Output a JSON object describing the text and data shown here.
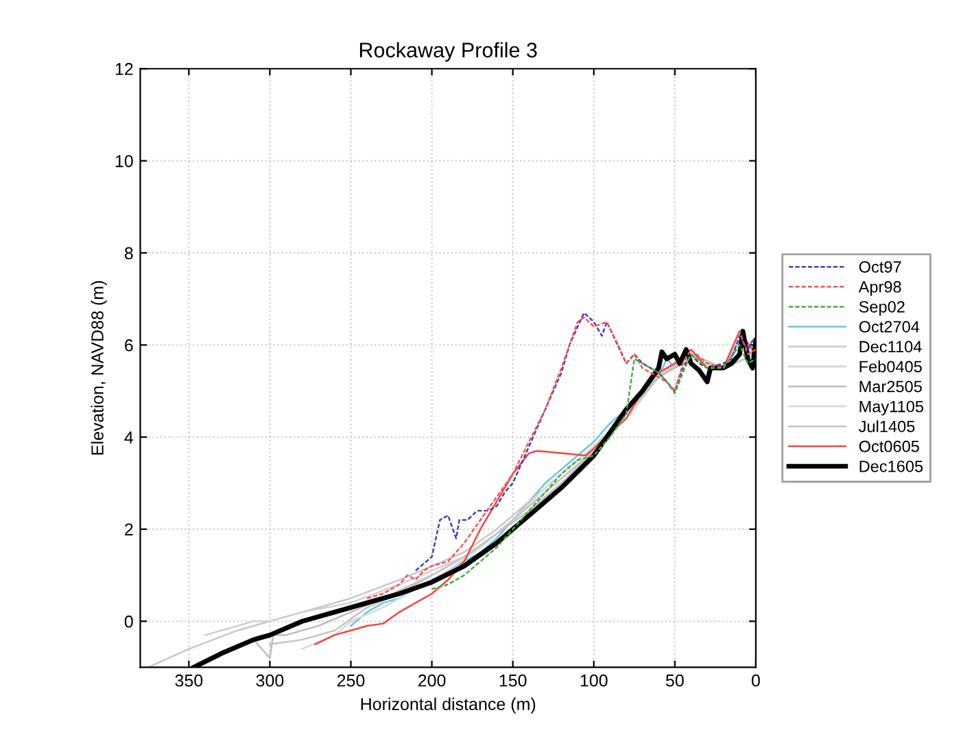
{
  "chart_data": {
    "type": "line",
    "title": "Rockaway Profile 3",
    "xlabel": "Horizontal distance (m)",
    "ylabel": "Elevation, NAVD88 (m)",
    "xlim": [
      380,
      0
    ],
    "xticks": [
      350,
      300,
      250,
      200,
      150,
      100,
      50,
      0
    ],
    "ylim": [
      -1,
      12
    ],
    "yticks": [
      0,
      2,
      4,
      6,
      8,
      10,
      12
    ],
    "grid": true,
    "legend": "right",
    "marker": "none",
    "series": [
      {
        "name": "Oct97",
        "color": "#4040c0",
        "line_style": "dashed",
        "x": [
          210,
          200,
          195,
          190,
          187,
          185,
          183,
          178,
          172,
          165,
          160,
          155,
          150,
          140,
          130,
          120,
          115,
          110,
          106,
          100,
          95,
          92,
          88,
          80,
          75,
          70,
          60,
          55,
          50,
          45,
          40,
          35,
          30,
          20,
          15,
          10,
          5,
          2,
          0
        ],
        "values": [
          1.1,
          1.4,
          2.2,
          2.3,
          2.0,
          1.8,
          2.2,
          2.2,
          2.4,
          2.4,
          2.5,
          2.8,
          3.0,
          3.8,
          4.6,
          5.4,
          6.0,
          6.4,
          6.7,
          6.5,
          6.2,
          6.5,
          6.2,
          5.6,
          5.8,
          5.6,
          5.4,
          5.2,
          5.0,
          5.5,
          5.8,
          5.6,
          5.5,
          5.6,
          5.7,
          6.2,
          5.9,
          6.1,
          6.1
        ]
      },
      {
        "name": "Apr98",
        "color": "#ff5050",
        "line_style": "dashed",
        "x": [
          240,
          230,
          220,
          215,
          210,
          205,
          200,
          190,
          185,
          180,
          170,
          160,
          150,
          140,
          130,
          120,
          110,
          106,
          100,
          92,
          85,
          80,
          75,
          70,
          60,
          55,
          50,
          45,
          40,
          30,
          20,
          10,
          5,
          0
        ],
        "values": [
          0.5,
          0.6,
          0.8,
          1.0,
          0.9,
          1.1,
          1.2,
          1.3,
          1.5,
          1.7,
          2.2,
          2.7,
          3.2,
          3.9,
          4.6,
          5.5,
          6.5,
          6.6,
          6.4,
          6.5,
          6.0,
          5.6,
          5.8,
          5.5,
          5.3,
          5.2,
          5.0,
          5.6,
          5.9,
          5.6,
          5.5,
          6.3,
          5.8,
          5.9
        ]
      },
      {
        "name": "Sep02",
        "color": "#40b030",
        "line_style": "dashed",
        "x": [
          200,
          190,
          180,
          170,
          160,
          150,
          140,
          130,
          120,
          110,
          100,
          90,
          80,
          75,
          70,
          60,
          55,
          50,
          45,
          40,
          30,
          20,
          10,
          5,
          0
        ],
        "values": [
          0.7,
          0.8,
          1.0,
          1.3,
          1.6,
          2.0,
          2.4,
          2.8,
          3.2,
          3.5,
          3.6,
          4.0,
          4.5,
          5.7,
          5.6,
          5.4,
          5.2,
          4.95,
          5.4,
          5.8,
          5.5,
          5.5,
          6.0,
          5.6,
          5.7
        ]
      },
      {
        "name": "Oct2704",
        "color": "#60c8e0",
        "line_style": "solid",
        "x": [
          250,
          240,
          230,
          220,
          210,
          200,
          190,
          180,
          170,
          160,
          150,
          140,
          130,
          120,
          110,
          100,
          90,
          80,
          70,
          60,
          55,
          50,
          40,
          30,
          20,
          10,
          0
        ],
        "values": [
          -0.1,
          0.2,
          0.4,
          0.5,
          0.7,
          0.9,
          1.1,
          1.3,
          1.5,
          1.8,
          2.2,
          2.6,
          3.0,
          3.3,
          3.6,
          3.9,
          4.3,
          4.6,
          5.0,
          5.3,
          5.7,
          5.5,
          5.8,
          5.5,
          5.5,
          6.1,
          5.7
        ]
      },
      {
        "name": "Dec1104",
        "color": "#c8c8c8",
        "line_style": "solid",
        "x": [
          375,
          350,
          320,
          300,
          280,
          250,
          220,
          200,
          180,
          160,
          140,
          120,
          100,
          80,
          60,
          50,
          40,
          20,
          10,
          0
        ],
        "values": [
          -1.0,
          -0.6,
          -0.2,
          0.0,
          0.2,
          0.5,
          0.9,
          1.2,
          1.5,
          2.0,
          2.6,
          3.2,
          3.8,
          4.5,
          5.3,
          5.6,
          5.8,
          5.5,
          6.1,
          5.8
        ]
      },
      {
        "name": "Feb0405",
        "color": "#d0d0d0",
        "line_style": "solid",
        "x": [
          340,
          310,
          300,
          280,
          250,
          220,
          200,
          180,
          160,
          140,
          120,
          100,
          80,
          60,
          40,
          20,
          0
        ],
        "values": [
          -0.3,
          0.0,
          0.0,
          0.2,
          0.4,
          0.8,
          1.1,
          1.4,
          1.9,
          2.5,
          3.1,
          3.7,
          4.4,
          5.3,
          5.7,
          5.5,
          5.8
        ]
      },
      {
        "name": "Mar2505",
        "color": "#bdbdbd",
        "line_style": "solid",
        "x": [
          310,
          300,
          298,
          290,
          270,
          250,
          230,
          200,
          180,
          160,
          140,
          120,
          100,
          80,
          60,
          40,
          20,
          0
        ],
        "values": [
          -0.4,
          -0.8,
          -0.3,
          -0.3,
          -0.1,
          0.2,
          0.5,
          1.0,
          1.4,
          1.9,
          2.4,
          3.0,
          3.7,
          4.5,
          5.3,
          5.7,
          5.5,
          5.8
        ]
      },
      {
        "name": "May1105",
        "color": "#d8d8d8",
        "line_style": "solid",
        "x": [
          280,
          260,
          250,
          230,
          210,
          190,
          170,
          150,
          130,
          110,
          90,
          70,
          55,
          40,
          20,
          0
        ],
        "values": [
          -0.6,
          -0.3,
          0.0,
          0.3,
          0.7,
          1.1,
          1.6,
          2.2,
          2.9,
          3.5,
          4.1,
          4.9,
          5.5,
          5.7,
          5.5,
          5.8
        ]
      },
      {
        "name": "Jul1405",
        "color": "#c4c4c4",
        "line_style": "solid",
        "x": [
          300,
          280,
          260,
          240,
          220,
          200,
          180,
          160,
          140,
          120,
          100,
          80,
          60,
          40,
          20,
          0
        ],
        "values": [
          -0.5,
          -0.4,
          -0.2,
          0.3,
          0.6,
          1.0,
          1.4,
          1.9,
          2.5,
          3.1,
          3.7,
          4.5,
          5.3,
          5.8,
          5.5,
          5.8
        ]
      },
      {
        "name": "Oct0605",
        "color": "#ff4040",
        "line_style": "solid",
        "x": [
          272,
          260,
          250,
          240,
          230,
          220,
          210,
          200,
          190,
          180,
          170,
          160,
          150,
          140,
          135,
          120,
          105,
          100,
          90,
          80,
          70,
          60,
          50,
          40,
          30,
          20,
          10,
          0
        ],
        "values": [
          -0.5,
          -0.3,
          -0.2,
          -0.1,
          -0.05,
          0.2,
          0.4,
          0.6,
          0.9,
          1.3,
          2.0,
          2.6,
          3.2,
          3.65,
          3.7,
          3.65,
          3.6,
          3.75,
          4.1,
          4.4,
          5.0,
          5.4,
          5.6,
          5.9,
          5.5,
          5.5,
          6.3,
          5.8
        ]
      },
      {
        "name": "Dec1605",
        "color": "#000000",
        "line_style": "solid",
        "x": [
          347,
          330,
          310,
          300,
          280,
          260,
          250,
          240,
          220,
          200,
          180,
          160,
          140,
          120,
          100,
          90,
          80,
          70,
          60,
          58,
          55,
          50,
          47,
          43,
          40,
          35,
          30,
          28,
          20,
          15,
          10,
          8,
          5,
          2,
          0
        ],
        "values": [
          -1.0,
          -0.7,
          -0.4,
          -0.3,
          0.0,
          0.2,
          0.3,
          0.4,
          0.6,
          0.85,
          1.2,
          1.7,
          2.3,
          2.9,
          3.6,
          4.1,
          4.6,
          5.0,
          5.5,
          5.85,
          5.7,
          5.8,
          5.6,
          5.9,
          5.6,
          5.45,
          5.2,
          5.5,
          5.5,
          5.6,
          5.8,
          6.3,
          5.7,
          5.5,
          6.1
        ]
      }
    ]
  }
}
